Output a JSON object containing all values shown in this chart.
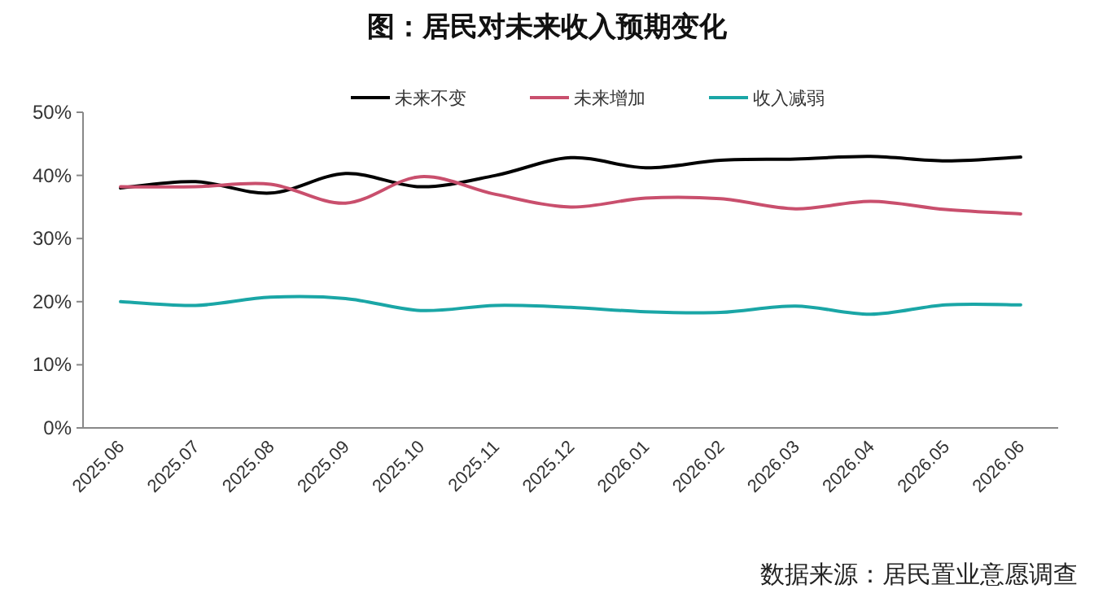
{
  "chart_data": {
    "type": "line",
    "title": "图：居民对未来收入预期变化",
    "categories": [
      "2025.06",
      "2025.07",
      "2025.08",
      "2025.09",
      "2025.10",
      "2025.11",
      "2025.12",
      "2026.01",
      "2026.02",
      "2026.03",
      "2026.04",
      "2026.05",
      "2026.06"
    ],
    "series": [
      {
        "name": "未来不变",
        "color": "#000000",
        "values": [
          38.0,
          39.0,
          37.2,
          40.3,
          38.2,
          40.0,
          42.8,
          41.2,
          42.4,
          42.6,
          43.0,
          42.3,
          42.9
        ]
      },
      {
        "name": "未来增加",
        "color": "#c94f6d",
        "values": [
          38.2,
          38.2,
          38.6,
          35.6,
          39.8,
          37.0,
          35.0,
          36.4,
          36.3,
          34.7,
          35.9,
          34.6,
          33.9
        ]
      },
      {
        "name": "收入减弱",
        "color": "#1aa6a6",
        "values": [
          20.0,
          19.4,
          20.7,
          20.5,
          18.6,
          19.4,
          19.1,
          18.4,
          18.3,
          19.3,
          18.0,
          19.5,
          19.5
        ]
      }
    ],
    "ylim": [
      0,
      50
    ],
    "yticks": [
      {
        "value": 0,
        "label": "0%"
      },
      {
        "value": 10,
        "label": "10%"
      },
      {
        "value": 20,
        "label": "20%"
      },
      {
        "value": 30,
        "label": "30%"
      },
      {
        "value": 40,
        "label": "40%"
      },
      {
        "value": 50,
        "label": "50%"
      }
    ],
    "grid": false,
    "legend": "top",
    "marker": "none",
    "line_style": "solid",
    "annotations": [
      "数据来源：居民置业意愿调查"
    ]
  }
}
